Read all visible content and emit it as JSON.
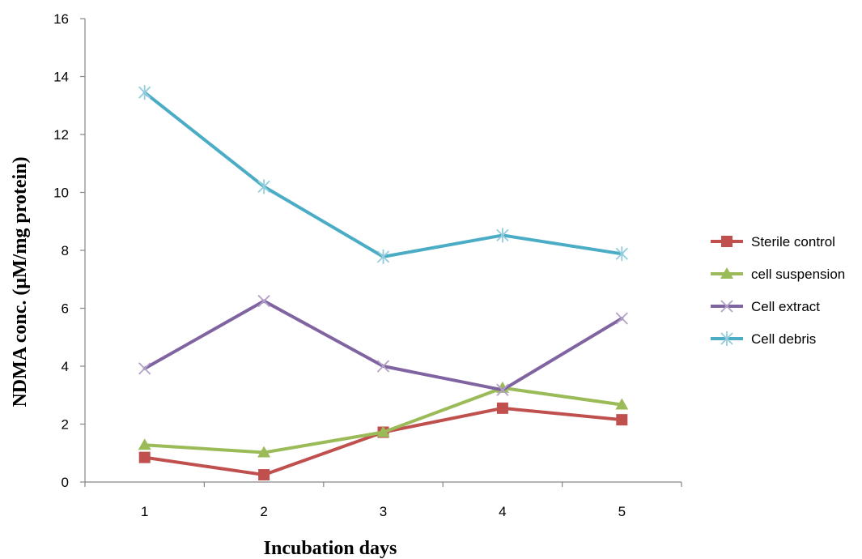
{
  "chart_data": {
    "type": "line",
    "title": "",
    "xlabel": "Incubation days",
    "ylabel": "NDMA conc. (μM/mg protein)",
    "categories": [
      "1",
      "2",
      "3",
      "4",
      "5"
    ],
    "ylim": [
      0,
      16
    ],
    "yticks": [
      0,
      2,
      4,
      6,
      8,
      10,
      12,
      14,
      16
    ],
    "grid": false,
    "legend_position": "right",
    "series": [
      {
        "name": "Sterile control",
        "values": [
          0.85,
          0.25,
          1.72,
          2.55,
          2.15
        ],
        "color": "#c0504d",
        "marker": "square"
      },
      {
        "name": "cell suspension",
        "values": [
          1.28,
          1.02,
          1.72,
          3.25,
          2.67
        ],
        "color": "#9bbb59",
        "marker": "triangle"
      },
      {
        "name": "Cell extract",
        "values": [
          3.92,
          6.25,
          4.0,
          3.18,
          5.65
        ],
        "color": "#8064a2",
        "marker": "x"
      },
      {
        "name": "Cell debris",
        "values": [
          13.45,
          10.2,
          7.78,
          8.52,
          7.88
        ],
        "color": "#4bacc6",
        "marker": "star"
      }
    ]
  }
}
